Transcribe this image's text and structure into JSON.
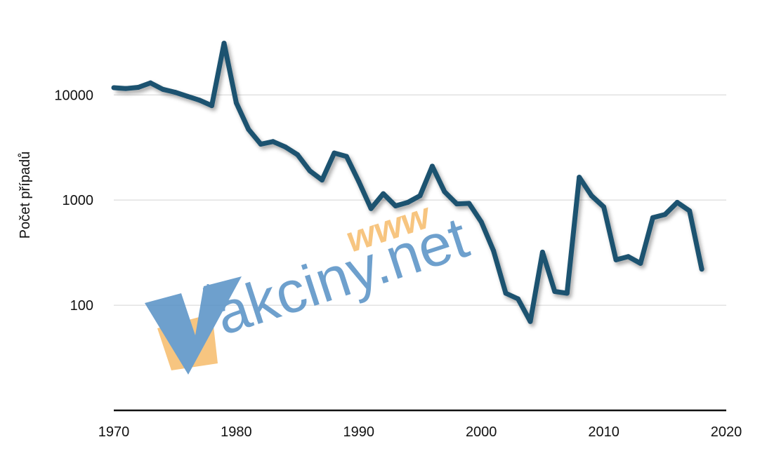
{
  "chart_data": {
    "type": "line",
    "title": "",
    "xlabel": "",
    "ylabel": "Počet případů",
    "y_scale": "log",
    "xlim": [
      1970,
      2020
    ],
    "ylim": [
      10,
      40000
    ],
    "x_ticks": [
      1970,
      1980,
      1990,
      2000,
      2010,
      2020
    ],
    "x_tick_labels": [
      "1970",
      "1980",
      "1990",
      "2000",
      "2010",
      "2020"
    ],
    "y_ticks": [
      100,
      1000,
      10000
    ],
    "y_tick_labels": [
      "100",
      "1000",
      "10000"
    ],
    "grid": "horizontal",
    "series_color": "#1d5270",
    "series": [
      {
        "x": [
          1970,
          1971,
          1972,
          1973,
          1974,
          1975,
          1976,
          1977,
          1978,
          1979,
          1980,
          1981,
          1982,
          1983,
          1984,
          1985,
          1986,
          1987,
          1988,
          1989,
          1990,
          1991,
          1992,
          1993,
          1994,
          1995,
          1996,
          1997,
          1998,
          1999,
          2000,
          2001,
          2002,
          2003,
          2004,
          2005,
          2006,
          2007,
          2008,
          2009,
          2010,
          2011,
          2012,
          2013,
          2014,
          2015,
          2016,
          2017,
          2018
        ],
        "values": [
          11700,
          11500,
          11800,
          13000,
          11300,
          10600,
          9700,
          8900,
          7900,
          31000,
          8400,
          4700,
          3400,
          3600,
          3200,
          2700,
          1900,
          1550,
          2800,
          2600,
          1500,
          830,
          1150,
          880,
          950,
          1100,
          2100,
          1200,
          920,
          930,
          620,
          330,
          130,
          115,
          70,
          320,
          135,
          130,
          1650,
          1100,
          860,
          270,
          290,
          250,
          680,
          730,
          950,
          790,
          220
        ]
      }
    ]
  },
  "watermark": {
    "prefix": "www",
    "text": "akciny.net",
    "letter": "V",
    "color_blue": "#5b93c6",
    "color_orange": "#f6be6f"
  }
}
